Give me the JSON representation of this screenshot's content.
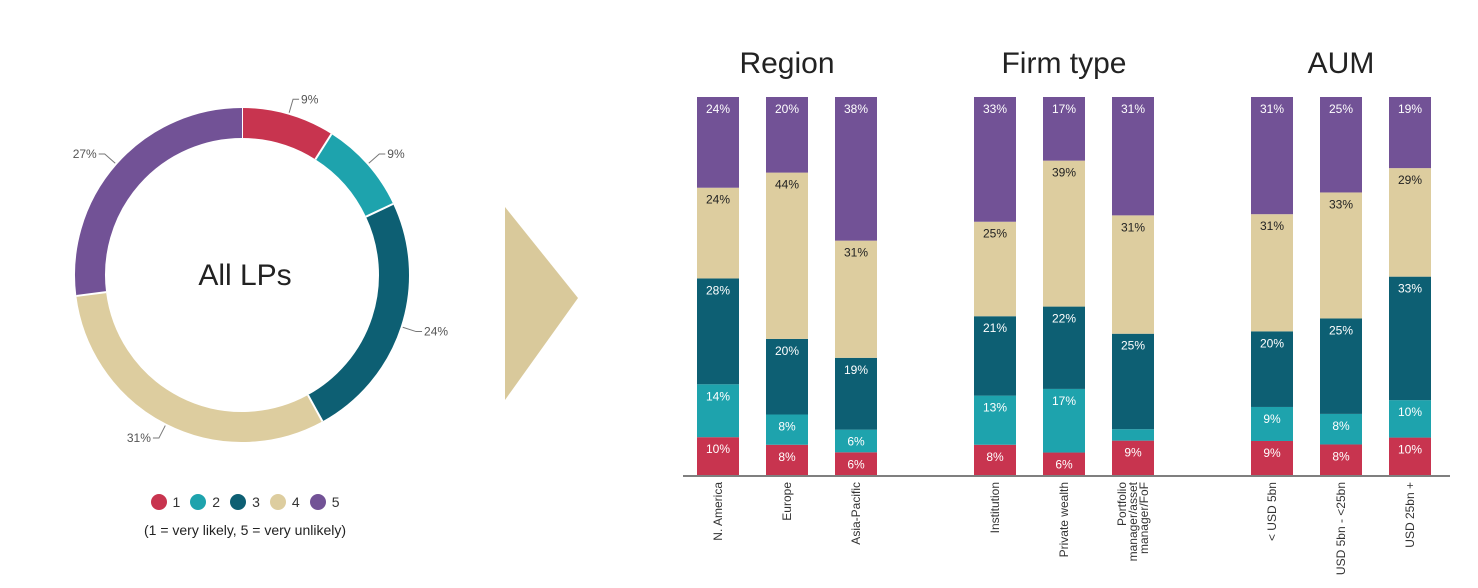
{
  "colors": {
    "1": "#c8344f",
    "2": "#1ea3ad",
    "3": "#0d5f73",
    "4": "#ddcd9f",
    "5": "#725296",
    "arrow": "#d9c99b"
  },
  "legend": {
    "items": [
      {
        "key": "1",
        "label": "1"
      },
      {
        "key": "2",
        "label": "2"
      },
      {
        "key": "3",
        "label": "3"
      },
      {
        "key": "4",
        "label": "4"
      },
      {
        "key": "5",
        "label": "5"
      }
    ],
    "note": "(1 = very likely, 5 = very unlikely)"
  },
  "chart_data": [
    {
      "type": "pie",
      "donut": true,
      "center_label": "All LPs",
      "slices": [
        {
          "key": "1",
          "value": 9,
          "label": "9%"
        },
        {
          "key": "2",
          "value": 9,
          "label": "9%"
        },
        {
          "key": "3",
          "value": 24,
          "label": "24%"
        },
        {
          "key": "4",
          "value": 31,
          "label": "31%"
        },
        {
          "key": "5",
          "value": 27,
          "label": "27%"
        }
      ]
    },
    {
      "type": "bar",
      "stacked": true,
      "series_order": [
        "1",
        "2",
        "3",
        "4",
        "5"
      ],
      "groups": [
        {
          "title": "Region",
          "bars": [
            {
              "category": "N. America",
              "values": [
                10,
                14,
                28,
                24,
                24
              ],
              "labels": [
                "10%",
                "14%",
                "28%",
                "24%",
                "24%"
              ]
            },
            {
              "category": "Europe",
              "values": [
                8,
                8,
                20,
                44,
                20
              ],
              "labels": [
                "8%",
                "8%",
                "20%",
                "44%",
                "20%"
              ]
            },
            {
              "category": "Asia-Pacific",
              "values": [
                6,
                6,
                19,
                31,
                38
              ],
              "labels": [
                "6%",
                "6%",
                "19%",
                "31%",
                "38%"
              ]
            }
          ]
        },
        {
          "title": "Firm type",
          "bars": [
            {
              "category": "Institution",
              "values": [
                8,
                13,
                21,
                25,
                33
              ],
              "labels": [
                "8%",
                "13%",
                "21%",
                "25%",
                "33%"
              ]
            },
            {
              "category": "Private wealth",
              "values": [
                6,
                17,
                22,
                39,
                17
              ],
              "labels": [
                "6%",
                "17%",
                "22%",
                "39%",
                "17%"
              ]
            },
            {
              "category": "Portfolio manager/asset manager/FoF",
              "values": [
                9,
                3,
                25,
                31,
                31
              ],
              "labels": [
                "9%",
                "",
                "25%",
                "31%",
                "31%"
              ]
            }
          ]
        },
        {
          "title": "AUM",
          "bars": [
            {
              "category": "< USD 5bn",
              "values": [
                9,
                9,
                20,
                31,
                31
              ],
              "labels": [
                "9%",
                "9%",
                "20%",
                "31%",
                "31%"
              ]
            },
            {
              "category": "USD 5bn - <25bn",
              "values": [
                8,
                8,
                25,
                33,
                25
              ],
              "labels": [
                "8%",
                "8%",
                "25%",
                "33%",
                "25%"
              ]
            },
            {
              "category": "USD 25bn +",
              "values": [
                10,
                10,
                33,
                29,
                19
              ],
              "labels": [
                "10%",
                "10%",
                "33%",
                "29%",
                "19%"
              ]
            }
          ]
        }
      ]
    }
  ]
}
